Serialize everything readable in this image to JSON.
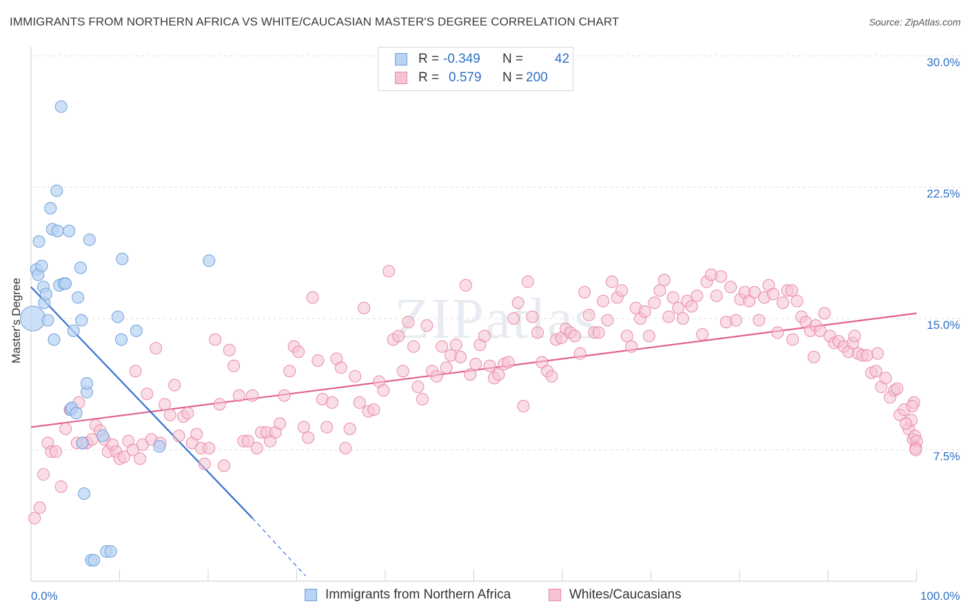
{
  "title": "IMMIGRANTS FROM NORTHERN AFRICA VS WHITE/CAUCASIAN MASTER'S DEGREE CORRELATION CHART",
  "source": "Source: ZipAtlas.com",
  "watermark": "ZIPatlas",
  "legend": {
    "rows": [
      {
        "r_key": "R =",
        "r_value": "-0.349",
        "n_key": "N =",
        "n_value": "42"
      },
      {
        "r_key": "R =",
        "r_value": "0.579",
        "n_key": "N =",
        "n_value": "200"
      }
    ]
  },
  "colors": {
    "blue_fill": "#b8d3f3",
    "blue_stroke": "#6e9fd8",
    "blue_line": "#2f6fd0",
    "pink_fill": "#f6c3d2",
    "pink_stroke": "#e889a8",
    "pink_line": "#e0608e",
    "accent_text": "#2e6fc4"
  },
  "chart_data": {
    "type": "scatter",
    "title": "IMMIGRANTS FROM NORTHERN AFRICA VS WHITE/CAUCASIAN MASTER'S DEGREE CORRELATION CHART",
    "xlabel": "",
    "ylabel": "Master's Degree",
    "xlim": [
      0,
      100
    ],
    "ylim": [
      0,
      30.0
    ],
    "x_tick_labels": [
      "0.0%",
      "100.0%"
    ],
    "y_ticks": [
      7.5,
      15.0,
      22.5,
      30.0
    ],
    "y_tick_labels": [
      "7.5%",
      "15.0%",
      "22.5%",
      "30.0%"
    ],
    "grid": true,
    "legend_placement": "top-center",
    "series": [
      {
        "name": "Immigrants from Northern Africa",
        "r": -0.349,
        "n": 42,
        "trend": {
          "x": [
            0,
            25
          ],
          "y": [
            16.8,
            3.6
          ],
          "dashed_extension_to": [
            31,
            0.3
          ]
        },
        "points": [
          [
            0.2,
            15.0
          ],
          [
            0.6,
            17.8
          ],
          [
            0.8,
            17.5
          ],
          [
            0.9,
            19.4
          ],
          [
            1.2,
            18.0
          ],
          [
            1.4,
            16.8
          ],
          [
            1.5,
            15.9
          ],
          [
            1.7,
            16.4
          ],
          [
            1.9,
            14.9
          ],
          [
            2.2,
            21.3
          ],
          [
            2.4,
            20.1
          ],
          [
            2.6,
            13.8
          ],
          [
            2.9,
            22.3
          ],
          [
            3.0,
            20.0
          ],
          [
            3.2,
            16.9
          ],
          [
            3.4,
            27.1
          ],
          [
            3.7,
            17.0
          ],
          [
            3.9,
            17.0
          ],
          [
            4.3,
            20.0
          ],
          [
            4.5,
            9.8
          ],
          [
            4.6,
            9.9
          ],
          [
            4.8,
            14.3
          ],
          [
            5.1,
            9.6
          ],
          [
            5.3,
            16.2
          ],
          [
            5.6,
            17.9
          ],
          [
            5.7,
            14.9
          ],
          [
            5.8,
            7.9
          ],
          [
            6.0,
            5.0
          ],
          [
            6.3,
            10.8
          ],
          [
            6.3,
            11.3
          ],
          [
            6.6,
            19.5
          ],
          [
            6.8,
            1.2
          ],
          [
            7.1,
            1.2
          ],
          [
            8.1,
            8.3
          ],
          [
            8.5,
            1.7
          ],
          [
            9.0,
            1.7
          ],
          [
            10.2,
            13.8
          ],
          [
            10.3,
            18.4
          ],
          [
            11.9,
            14.3
          ],
          [
            14.5,
            7.7
          ],
          [
            20.1,
            18.3
          ],
          [
            9.8,
            15.1
          ]
        ]
      },
      {
        "name": "Whites/Caucasians",
        "r": 0.579,
        "n": 200,
        "trend": {
          "x": [
            0,
            100
          ],
          "y": [
            8.8,
            15.3
          ]
        },
        "points": [
          [
            0.4,
            3.6
          ],
          [
            1.0,
            4.2
          ],
          [
            1.4,
            6.1
          ],
          [
            1.9,
            7.9
          ],
          [
            2.3,
            7.4
          ],
          [
            2.8,
            7.4
          ],
          [
            3.4,
            5.4
          ],
          [
            3.9,
            8.7
          ],
          [
            4.4,
            9.8
          ],
          [
            5.2,
            7.9
          ],
          [
            5.4,
            10.2
          ],
          [
            5.9,
            7.9
          ],
          [
            6.3,
            7.9
          ],
          [
            6.9,
            8.1
          ],
          [
            7.3,
            8.9
          ],
          [
            7.8,
            8.6
          ],
          [
            8.3,
            8.1
          ],
          [
            8.7,
            7.4
          ],
          [
            9.2,
            7.8
          ],
          [
            9.6,
            7.4
          ],
          [
            10.0,
            7.0
          ],
          [
            10.5,
            7.1
          ],
          [
            11.0,
            8.0
          ],
          [
            11.5,
            7.5
          ],
          [
            11.8,
            12.0
          ],
          [
            12.3,
            7.0
          ],
          [
            12.6,
            7.8
          ],
          [
            13.1,
            10.7
          ],
          [
            13.6,
            8.1
          ],
          [
            14.1,
            13.3
          ],
          [
            14.6,
            7.9
          ],
          [
            15.1,
            10.1
          ],
          [
            15.7,
            9.5
          ],
          [
            16.2,
            11.2
          ],
          [
            16.7,
            8.3
          ],
          [
            17.2,
            9.4
          ],
          [
            17.7,
            9.6
          ],
          [
            18.2,
            7.9
          ],
          [
            18.7,
            8.4
          ],
          [
            19.2,
            7.6
          ],
          [
            19.6,
            6.7
          ],
          [
            20.1,
            7.6
          ],
          [
            20.8,
            13.8
          ],
          [
            21.3,
            10.1
          ],
          [
            21.8,
            6.6
          ],
          [
            22.4,
            13.2
          ],
          [
            22.9,
            12.3
          ],
          [
            23.5,
            10.6
          ],
          [
            24.0,
            8.0
          ],
          [
            24.5,
            8.0
          ],
          [
            25.0,
            10.6
          ],
          [
            25.5,
            7.6
          ],
          [
            26.0,
            8.5
          ],
          [
            26.6,
            8.5
          ],
          [
            27.0,
            8.0
          ],
          [
            27.6,
            8.5
          ],
          [
            28.1,
            9.0
          ],
          [
            28.6,
            10.6
          ],
          [
            29.2,
            12.0
          ],
          [
            29.7,
            13.4
          ],
          [
            30.2,
            13.1
          ],
          [
            30.8,
            8.8
          ],
          [
            31.3,
            8.2
          ],
          [
            31.8,
            16.2
          ],
          [
            32.4,
            12.6
          ],
          [
            32.9,
            10.4
          ],
          [
            33.4,
            8.8
          ],
          [
            34.0,
            10.2
          ],
          [
            34.5,
            12.7
          ],
          [
            35.0,
            12.2
          ],
          [
            35.5,
            7.6
          ],
          [
            36.0,
            8.7
          ],
          [
            36.6,
            11.7
          ],
          [
            37.1,
            10.2
          ],
          [
            37.6,
            15.6
          ],
          [
            38.1,
            9.7
          ],
          [
            38.7,
            9.8
          ],
          [
            39.3,
            11.4
          ],
          [
            39.8,
            10.9
          ],
          [
            40.4,
            17.7
          ],
          [
            40.9,
            13.8
          ],
          [
            41.5,
            14.0
          ],
          [
            42.0,
            12.0
          ],
          [
            42.6,
            14.8
          ],
          [
            43.2,
            13.4
          ],
          [
            43.7,
            11.1
          ],
          [
            44.2,
            10.4
          ],
          [
            44.7,
            14.6
          ],
          [
            45.3,
            12.0
          ],
          [
            45.8,
            11.7
          ],
          [
            46.4,
            13.4
          ],
          [
            46.9,
            12.2
          ],
          [
            47.4,
            12.9
          ],
          [
            48.0,
            13.5
          ],
          [
            48.5,
            12.8
          ],
          [
            49.1,
            16.9
          ],
          [
            49.6,
            11.8
          ],
          [
            50.2,
            12.4
          ],
          [
            50.7,
            13.5
          ],
          [
            51.2,
            14.0
          ],
          [
            51.8,
            12.3
          ],
          [
            52.3,
            11.6
          ],
          [
            52.8,
            11.8
          ],
          [
            53.4,
            12.4
          ],
          [
            53.9,
            12.5
          ],
          [
            54.5,
            15.0
          ],
          [
            55.0,
            15.9
          ],
          [
            55.6,
            10.0
          ],
          [
            56.1,
            17.1
          ],
          [
            56.6,
            15.1
          ],
          [
            57.2,
            14.2
          ],
          [
            57.7,
            12.5
          ],
          [
            58.3,
            12.0
          ],
          [
            58.8,
            11.7
          ],
          [
            59.3,
            13.8
          ],
          [
            59.9,
            13.9
          ],
          [
            60.4,
            14.4
          ],
          [
            60.9,
            14.2
          ],
          [
            61.4,
            14.0
          ],
          [
            62.0,
            13.0
          ],
          [
            62.5,
            16.5
          ],
          [
            63.0,
            15.2
          ],
          [
            63.6,
            14.2
          ],
          [
            64.1,
            14.2
          ],
          [
            64.6,
            16.0
          ],
          [
            65.1,
            14.9
          ],
          [
            65.6,
            17.1
          ],
          [
            66.2,
            16.2
          ],
          [
            66.7,
            16.6
          ],
          [
            67.3,
            14.0
          ],
          [
            67.8,
            13.4
          ],
          [
            68.3,
            15.6
          ],
          [
            68.8,
            15.0
          ],
          [
            69.3,
            15.4
          ],
          [
            69.8,
            14.0
          ],
          [
            70.4,
            15.9
          ],
          [
            71.0,
            16.6
          ],
          [
            71.5,
            17.2
          ],
          [
            72.0,
            15.1
          ],
          [
            72.5,
            16.2
          ],
          [
            73.1,
            15.6
          ],
          [
            73.6,
            15.0
          ],
          [
            74.1,
            16.0
          ],
          [
            74.6,
            15.7
          ],
          [
            75.2,
            16.3
          ],
          [
            75.8,
            14.1
          ],
          [
            76.3,
            17.1
          ],
          [
            76.8,
            17.5
          ],
          [
            77.4,
            16.3
          ],
          [
            77.9,
            17.4
          ],
          [
            78.5,
            14.8
          ],
          [
            79.0,
            16.8
          ],
          [
            79.6,
            14.9
          ],
          [
            80.1,
            16.1
          ],
          [
            80.6,
            16.5
          ],
          [
            81.1,
            16.0
          ],
          [
            81.7,
            16.5
          ],
          [
            82.2,
            14.9
          ],
          [
            82.8,
            16.2
          ],
          [
            83.3,
            16.9
          ],
          [
            83.8,
            16.4
          ],
          [
            84.3,
            14.2
          ],
          [
            84.9,
            15.9
          ],
          [
            85.4,
            16.6
          ],
          [
            85.9,
            16.6
          ],
          [
            86.5,
            16.0
          ],
          [
            87.0,
            15.1
          ],
          [
            87.5,
            14.8
          ],
          [
            88.0,
            14.3
          ],
          [
            88.6,
            14.6
          ],
          [
            89.1,
            14.3
          ],
          [
            89.6,
            15.3
          ],
          [
            90.2,
            14.0
          ],
          [
            90.7,
            13.6
          ],
          [
            91.2,
            13.7
          ],
          [
            91.8,
            13.4
          ],
          [
            92.3,
            13.1
          ],
          [
            92.8,
            13.6
          ],
          [
            93.4,
            13.0
          ],
          [
            93.9,
            12.9
          ],
          [
            94.4,
            12.9
          ],
          [
            94.9,
            11.9
          ],
          [
            95.4,
            12.0
          ],
          [
            96.0,
            11.1
          ],
          [
            96.5,
            11.6
          ],
          [
            97.0,
            10.5
          ],
          [
            97.5,
            10.9
          ],
          [
            98.1,
            9.5
          ],
          [
            98.6,
            9.8
          ],
          [
            99.1,
            8.7
          ],
          [
            99.4,
            9.2
          ],
          [
            99.6,
            8.1
          ],
          [
            99.7,
            10.2
          ],
          [
            99.8,
            8.3
          ],
          [
            100.0,
            8.0
          ],
          [
            99.9,
            7.6
          ],
          [
            99.9,
            7.5
          ],
          [
            99.5,
            10.0
          ],
          [
            98.8,
            9.0
          ],
          [
            97.8,
            11.0
          ],
          [
            95.6,
            13.0
          ],
          [
            93.0,
            14.0
          ],
          [
            88.4,
            12.8
          ],
          [
            86.0,
            13.8
          ]
        ]
      }
    ]
  },
  "bottom_legend": [
    "Immigrants from Northern Africa",
    "Whites/Caucasians"
  ]
}
